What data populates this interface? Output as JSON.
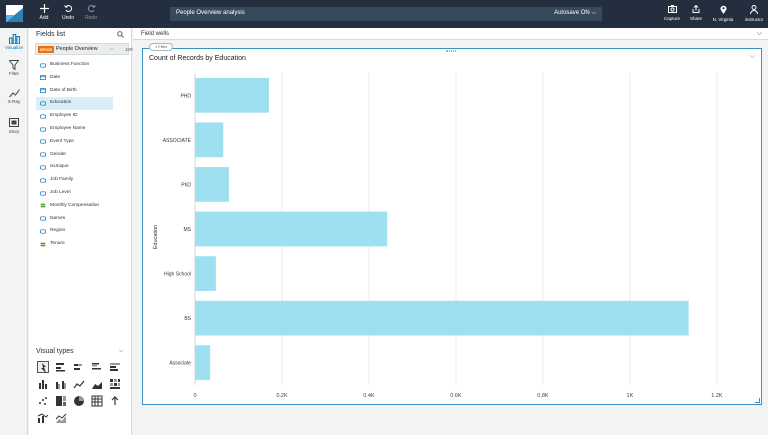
{
  "topbar": {
    "add_label": "Add",
    "undo_label": "Undo",
    "redo_label": "Redo",
    "analysis_name": "People Overview analysis",
    "autosave_label": "Autosave ON",
    "capture_label": "Capture",
    "share_label": "Share",
    "region_label": "N. Virginia",
    "user_label": "instructor"
  },
  "rail": [
    {
      "label": "Visualize",
      "icon": "bar-chart-icon"
    },
    {
      "label": "Filter",
      "icon": "filter-icon"
    },
    {
      "label": "X-Ray",
      "icon": "line-trend-icon"
    },
    {
      "label": "Story",
      "icon": "story-icon"
    }
  ],
  "fields_panel": {
    "title": "Fields list",
    "dataset_badge": "SPICE",
    "dataset_name": "People Overview",
    "dataset_pct": "100%",
    "fields": [
      {
        "label": "Business Function",
        "type": "dimension"
      },
      {
        "label": "Date",
        "type": "date"
      },
      {
        "label": "Date of Birth",
        "type": "date"
      },
      {
        "label": "Education",
        "type": "dimension"
      },
      {
        "label": "Employee ID",
        "type": "dimension"
      },
      {
        "label": "Employee Name",
        "type": "dimension"
      },
      {
        "label": "Event Type",
        "type": "dimension"
      },
      {
        "label": "Gender",
        "type": "dimension"
      },
      {
        "label": "isUnique",
        "type": "dimension"
      },
      {
        "label": "Job Family",
        "type": "dimension"
      },
      {
        "label": "Job Level",
        "type": "dimension"
      },
      {
        "label": "Monthly Compensation",
        "type": "measure"
      },
      {
        "label": "Names",
        "type": "dimension"
      },
      {
        "label": "Region",
        "type": "dimension"
      },
      {
        "label": "Tenure",
        "type": "measure"
      }
    ],
    "selected_field": "Education",
    "visual_types_title": "Visual types"
  },
  "main": {
    "field_wells_label": "Field wells",
    "filter_tag": "1 Filter",
    "visual_title": "Count of Records by Education"
  },
  "colors": {
    "topbar": "#232f3e",
    "bar": "#9fe0f0",
    "accent": "#0073bb",
    "spice": "#ec7211"
  },
  "chart_data": {
    "type": "bar",
    "orientation": "horizontal",
    "title": "Count of Records by Education",
    "ylabel": "Education",
    "xlabel": "",
    "categories": [
      "PHD",
      "ASSOCIATE",
      "PhD",
      "MS",
      "High School",
      "BS",
      "Associate"
    ],
    "values": [
      170,
      65,
      78,
      442,
      48,
      1135,
      35
    ],
    "xlim": [
      0,
      1260
    ],
    "xticks": [
      0,
      200,
      400,
      600,
      800,
      1000,
      1200
    ],
    "xtick_labels": [
      "0",
      "0.2K",
      "0.4K",
      "0.6K",
      "0.8K",
      "1K",
      "1.2K"
    ],
    "grid": true
  }
}
